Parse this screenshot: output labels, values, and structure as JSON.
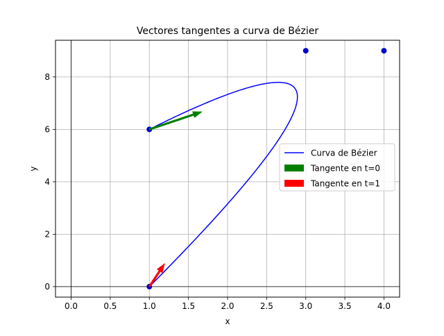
{
  "chart_data": {
    "type": "line",
    "title": "Vectores tangentes a curva de Bézier",
    "xlabel": "x",
    "ylabel": "y",
    "xlim": [
      -0.2,
      4.2
    ],
    "ylim": [
      -0.4,
      9.4
    ],
    "x_ticks": [
      0.0,
      0.5,
      1.0,
      1.5,
      2.0,
      2.5,
      3.0,
      3.5,
      4.0
    ],
    "x_tick_labels": [
      "0.0",
      "0.5",
      "1.0",
      "1.5",
      "2.0",
      "2.5",
      "3.0",
      "3.5",
      "4.0"
    ],
    "y_ticks": [
      0,
      2,
      4,
      6,
      8
    ],
    "y_tick_labels": [
      "0",
      "2",
      "4",
      "6",
      "8"
    ],
    "grid": true,
    "legend_position": "center-right",
    "control_points": [
      {
        "x": 1,
        "y": 0
      },
      {
        "x": 4,
        "y": 9
      },
      {
        "x": 3,
        "y": 9
      },
      {
        "x": 1,
        "y": 6
      }
    ],
    "series": [
      {
        "name": "Curva de Bézier",
        "kind": "line",
        "color": "#0000ff"
      },
      {
        "name": "Tangente en t=0",
        "kind": "arrow",
        "color": "#008000",
        "origin": [
          1,
          6
        ],
        "vector": [
          0.68,
          0.68
        ]
      },
      {
        "name": "Tangente en t=1",
        "kind": "arrow",
        "color": "#ff0000",
        "origin": [
          1,
          0
        ],
        "vector": [
          0.2,
          0.9
        ]
      }
    ]
  }
}
